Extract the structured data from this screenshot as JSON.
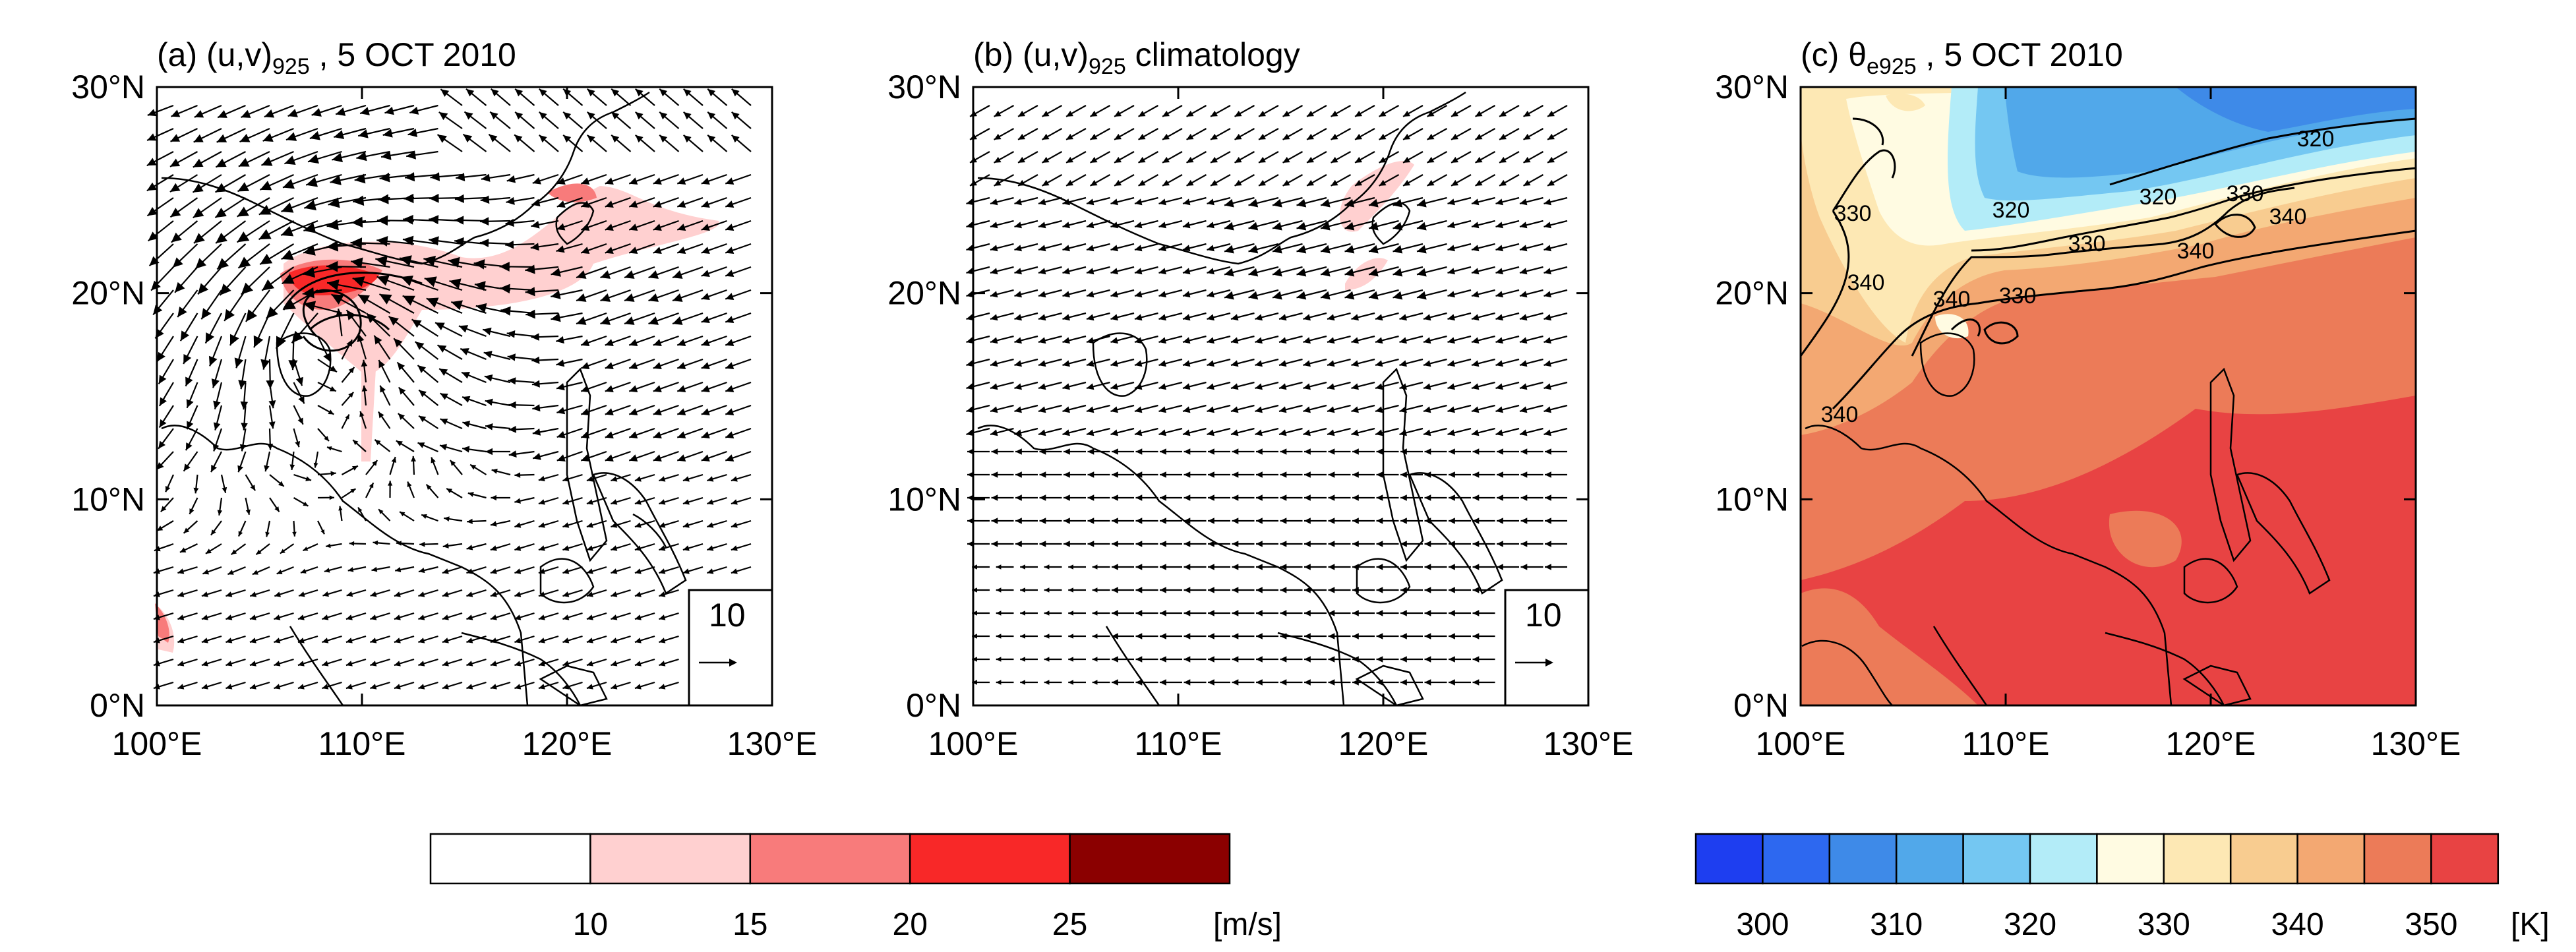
{
  "panels": [
    {
      "id": "a",
      "title_prefix": "(a) (u,v)",
      "title_sub": "925",
      "title_suffix": " , 5 OCT 2010",
      "ref_vector": "10"
    },
    {
      "id": "b",
      "title_prefix": "(b) (u,v)",
      "title_sub": "925",
      "title_suffix": " climatology",
      "ref_vector": "10"
    },
    {
      "id": "c",
      "title_prefix": "(c) θ",
      "title_sub": "e925",
      "title_suffix": " , 5 OCT 2010"
    }
  ],
  "axes": {
    "lat_ticks": [
      {
        "value": 0,
        "label": "0°N"
      },
      {
        "value": 10,
        "label": "10°N"
      },
      {
        "value": 20,
        "label": "20°N"
      },
      {
        "value": 30,
        "label": "30°N"
      }
    ],
    "lon_ticks": [
      {
        "value": 100,
        "label": "100°E"
      },
      {
        "value": 110,
        "label": "110°E"
      },
      {
        "value": 120,
        "label": "120°E"
      },
      {
        "value": 130,
        "label": "130°E"
      }
    ],
    "lon_range": [
      100,
      130
    ],
    "lat_range": [
      0,
      30
    ]
  },
  "colorbars": {
    "wind": {
      "unit": "[m/s]",
      "labels": [
        "10",
        "15",
        "20",
        "25"
      ],
      "colors": [
        "#ffffff",
        "#ffd0d0",
        "#f87b7b",
        "#f82828",
        "#8b0000"
      ]
    },
    "theta": {
      "unit": "[K]",
      "labels": [
        "300",
        "310",
        "320",
        "330",
        "340",
        "350"
      ],
      "colors": [
        "#1e3ef0",
        "#2d68f0",
        "#3e8ae8",
        "#51a8ea",
        "#74c7f2",
        "#b3ecf8",
        "#fffbe2",
        "#fde8b4",
        "#f8cc90",
        "#f3a872",
        "#ec7b58",
        "#e84343"
      ]
    }
  },
  "contour_labels": [
    "320",
    "320",
    "320",
    "330",
    "330",
    "330",
    "330",
    "340",
    "340",
    "340",
    "340",
    "340"
  ],
  "colors": {
    "wind_15_20": "#ffd0d0",
    "wind_20_25": "#f87b7b",
    "wind_25_30": "#f82828"
  }
}
